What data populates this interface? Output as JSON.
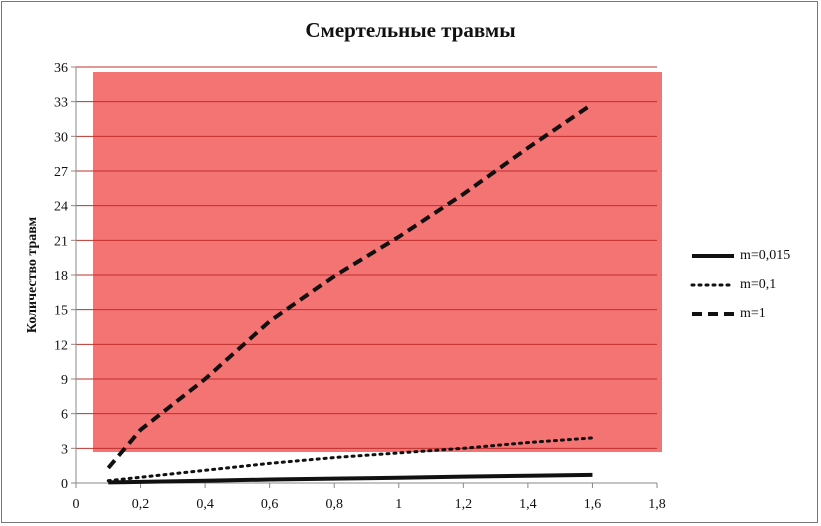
{
  "chart_data": {
    "type": "line",
    "title": "Смертельные травмы",
    "xlabel": "",
    "ylabel": "Количество травм",
    "xlim": [
      0,
      1.8
    ],
    "ylim": [
      0,
      36
    ],
    "x_ticks": [
      "0",
      "0,2",
      "0,4",
      "0,6",
      "0,8",
      "1",
      "1,2",
      "1,4",
      "1,6",
      "1,8"
    ],
    "y_ticks": [
      "0",
      "3",
      "6",
      "9",
      "12",
      "15",
      "18",
      "21",
      "24",
      "27",
      "30",
      "33",
      "36"
    ],
    "grid": true,
    "legend_position": "right",
    "plot_background": "#f47373",
    "gridline_color": "#c0302c",
    "x": [
      0.1,
      0.2,
      0.4,
      0.6,
      0.8,
      1.0,
      1.2,
      1.4,
      1.6
    ],
    "series": [
      {
        "name": "m=0,015",
        "style": "solid",
        "values": [
          0.05,
          0.1,
          0.2,
          0.3,
          0.38,
          0.45,
          0.55,
          0.63,
          0.7
        ]
      },
      {
        "name": "m=0,1",
        "style": "dotted",
        "values": [
          0.2,
          0.5,
          1.1,
          1.7,
          2.2,
          2.6,
          3.0,
          3.5,
          3.9
        ]
      },
      {
        "name": "m=1",
        "style": "dashed",
        "values": [
          1.3,
          4.6,
          9.0,
          14.0,
          17.9,
          21.3,
          25.0,
          29.0,
          32.8
        ]
      }
    ]
  }
}
